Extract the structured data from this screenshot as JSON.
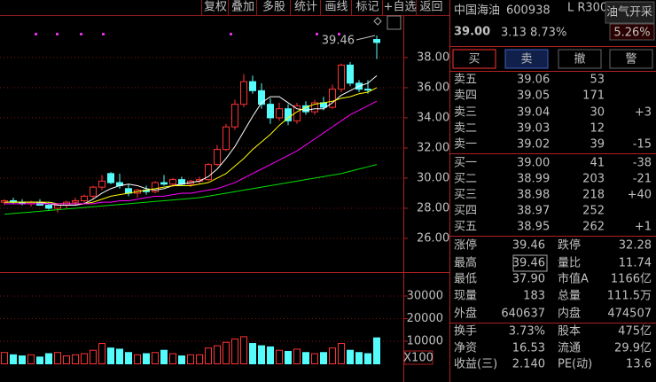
{
  "toolbar": [
    "复权",
    "叠加",
    "多股",
    "统计",
    "画线",
    "标记",
    "+自选",
    "返回"
  ],
  "chart_data": [
    {
      "type": "candlestick",
      "up_color": "#ff3232",
      "down_color": "#54fcfc",
      "max_label": "39.46",
      "open": [
        28.4,
        28.5,
        28.4,
        28.3,
        28.4,
        28.2,
        28.0,
        28.2,
        28.4,
        28.5,
        28.8,
        29.4,
        30.3,
        29.7,
        29.3,
        29.0,
        29.2,
        29.1,
        29.7,
        29.6,
        29.9,
        29.6,
        29.8,
        29.9,
        30.9,
        31.9,
        33.4,
        34.9,
        36.4,
        35.8,
        34.9,
        34.0,
        34.6,
        33.8,
        34.8,
        34.4,
        35.0,
        34.7,
        35.9,
        37.5,
        36.3,
        35.9,
        39.2
      ],
      "high": [
        28.6,
        28.7,
        28.6,
        28.5,
        28.6,
        28.4,
        28.3,
        28.5,
        28.7,
        28.9,
        29.5,
        30.2,
        30.4,
        30.3,
        29.6,
        29.3,
        29.5,
        29.8,
        30.2,
        30.0,
        30.1,
        29.9,
        30.1,
        31.0,
        32.2,
        33.6,
        35.2,
        36.9,
        36.8,
        36.3,
        35.3,
        35.0,
        34.9,
        35.0,
        35.1,
        35.2,
        35.4,
        36.2,
        37.6,
        37.7,
        36.5,
        36.5,
        39.46
      ],
      "low": [
        28.2,
        28.3,
        28.2,
        28.1,
        28.2,
        27.9,
        27.7,
        28.0,
        28.2,
        28.3,
        28.6,
        29.2,
        29.6,
        29.3,
        28.8,
        28.7,
        28.9,
        29.0,
        29.5,
        29.4,
        29.5,
        29.4,
        29.6,
        29.8,
        30.8,
        31.8,
        33.2,
        34.7,
        35.6,
        34.6,
        33.6,
        33.8,
        33.5,
        33.6,
        34.2,
        34.2,
        34.5,
        34.6,
        35.7,
        36.1,
        35.7,
        35.6,
        37.9
      ],
      "close": [
        28.5,
        28.4,
        28.3,
        28.4,
        28.2,
        28.0,
        28.2,
        28.4,
        28.5,
        28.8,
        29.4,
        29.8,
        29.7,
        29.5,
        29.0,
        29.2,
        29.1,
        29.7,
        29.6,
        29.9,
        29.6,
        29.8,
        29.9,
        30.9,
        31.9,
        33.4,
        34.9,
        36.4,
        35.8,
        34.9,
        34.0,
        34.6,
        33.8,
        34.8,
        34.4,
        35.0,
        34.7,
        35.9,
        37.5,
        36.3,
        35.9,
        35.87,
        39.0
      ],
      "series": [
        {
          "name": "MA5",
          "color": "#ffffff",
          "values": [
            28.4,
            28.4,
            28.4,
            28.4,
            28.4,
            28.3,
            28.2,
            28.2,
            28.2,
            28.3,
            28.6,
            29.0,
            29.3,
            29.5,
            29.6,
            29.5,
            29.3,
            29.2,
            29.3,
            29.5,
            29.6,
            29.7,
            29.8,
            30.1,
            30.6,
            31.3,
            32.1,
            33.1,
            34.1,
            35.0,
            35.4,
            35.4,
            35.0,
            34.6,
            34.5,
            34.6,
            34.6,
            35.0,
            35.5,
            35.8,
            36.1,
            36.3,
            36.8
          ]
        },
        {
          "name": "MA10",
          "color": "#ffff00",
          "values": [
            28.4,
            28.4,
            28.4,
            28.4,
            28.4,
            28.4,
            28.3,
            28.3,
            28.3,
            28.3,
            28.4,
            28.6,
            28.8,
            28.9,
            29.0,
            29.1,
            29.2,
            29.3,
            29.4,
            29.5,
            29.5,
            29.5,
            29.6,
            29.7,
            30.0,
            30.3,
            30.8,
            31.3,
            31.9,
            32.4,
            32.9,
            33.5,
            34.0,
            34.4,
            34.7,
            34.9,
            35.0,
            35.1,
            35.3,
            35.4,
            35.6,
            35.7,
            36.0
          ]
        },
        {
          "name": "MA20",
          "color": "#ff00ff",
          "values": [
            28.3,
            28.3,
            28.3,
            28.3,
            28.3,
            28.3,
            28.3,
            28.3,
            28.3,
            28.3,
            28.3,
            28.4,
            28.4,
            28.5,
            28.5,
            28.6,
            28.7,
            28.8,
            28.8,
            28.9,
            29.0,
            29.0,
            29.1,
            29.2,
            29.3,
            29.5,
            29.7,
            30.0,
            30.3,
            30.6,
            30.9,
            31.2,
            31.5,
            31.8,
            32.2,
            32.6,
            33.0,
            33.4,
            33.8,
            34.2,
            34.5,
            34.8,
            35.1
          ]
        },
        {
          "name": "MA60",
          "color": "#00e000",
          "values": [
            27.6,
            27.65,
            27.7,
            27.75,
            27.8,
            27.85,
            27.9,
            27.95,
            28.0,
            28.05,
            28.1,
            28.15,
            28.2,
            28.25,
            28.3,
            28.35,
            28.4,
            28.45,
            28.5,
            28.55,
            28.6,
            28.65,
            28.7,
            28.8,
            28.9,
            29.0,
            29.1,
            29.2,
            29.3,
            29.4,
            29.5,
            29.6,
            29.7,
            29.8,
            29.9,
            30.0,
            30.1,
            30.2,
            30.3,
            30.45,
            30.6,
            30.75,
            30.9
          ]
        }
      ],
      "ylim": [
        23.88,
        40.76
      ],
      "yticks": [
        {
          "value": 26,
          "label": "26.00"
        },
        {
          "value": 28,
          "label": "28.00"
        },
        {
          "value": 30,
          "label": "30.00"
        },
        {
          "value": 32,
          "label": "32.00"
        },
        {
          "value": 34,
          "label": "34.00"
        },
        {
          "value": 36,
          "label": "36.00"
        },
        {
          "value": 38,
          "label": "38.00"
        }
      ]
    },
    {
      "type": "bar",
      "unit_label": "X100",
      "values": [
        5000,
        4000,
        3500,
        4000,
        3000,
        4500,
        5000,
        3500,
        4000,
        4500,
        6000,
        9000,
        7000,
        6500,
        5000,
        4000,
        4500,
        5000,
        6000,
        4500,
        3500,
        4000,
        4000,
        7000,
        8000,
        9500,
        11000,
        12000,
        9000,
        8000,
        7500,
        6000,
        5500,
        6500,
        5000,
        4500,
        5000,
        7000,
        9000,
        6000,
        5000,
        4500,
        11500
      ],
      "ylim": [
        0,
        39400
      ],
      "yticks": [
        10000,
        20000,
        30000
      ]
    }
  ],
  "stock": {
    "name": "中国海油",
    "code": "600938",
    "tag": "L R300",
    "sector": "油气开采",
    "sector_change": "5.26%",
    "price": "39.00",
    "change": "3.13",
    "change_pct": "8.73%"
  },
  "buttons": [
    "买",
    "卖",
    "撤",
    "警"
  ],
  "order_book": [
    {
      "label": "卖五",
      "price": "39.06",
      "volume": "53"
    },
    {
      "label": "卖四",
      "price": "39.05",
      "volume": "171"
    },
    {
      "label": "卖三",
      "price": "39.04",
      "volume": "30",
      "change": "+3"
    },
    {
      "label": "卖二",
      "price": "39.03",
      "volume": "12"
    },
    {
      "label": "卖一",
      "price": "39.02",
      "volume": "39",
      "change": "-15"
    },
    {
      "label": "买一",
      "price": "39.00",
      "volume": "41",
      "change": "-38"
    },
    {
      "label": "买二",
      "price": "38.99",
      "volume": "203",
      "change": "-21"
    },
    {
      "label": "买三",
      "price": "38.98",
      "volume": "218",
      "change": "+40"
    },
    {
      "label": "买四",
      "price": "38.97",
      "volume": "252"
    },
    {
      "label": "买五",
      "price": "38.95",
      "volume": "262",
      "change": "+1"
    }
  ],
  "stats": [
    {
      "label": "涨停",
      "value": "39.46",
      "color": "#ff3232"
    },
    {
      "label": "跌停",
      "value": "32.28",
      "color": "#00e000"
    },
    {
      "label": "最高",
      "value": "39.46",
      "color": "#ff3232",
      "boxed": true
    },
    {
      "label": "量比",
      "value": "11.74",
      "color": "#ff40ff"
    },
    {
      "label": "最低",
      "value": "37.90",
      "color": "#ff3232"
    },
    {
      "label": "市值A",
      "value": "1166亿",
      "color": "#e0e0e0"
    },
    {
      "label": "现量",
      "value": "183",
      "color": "#00e000"
    },
    {
      "label": "总量",
      "value": "111.5万",
      "color": "#e0e0e0"
    },
    {
      "label": "外盘",
      "value": "640637",
      "color": "#ff3232"
    },
    {
      "label": "内盘",
      "value": "474507",
      "color": "#00e000"
    },
    {
      "label": "换手",
      "value": "3.73%",
      "color": "#e0e0e0"
    },
    {
      "label": "股本",
      "value": "475亿",
      "color": "#e0e0e0"
    },
    {
      "label": "净资",
      "value": "16.53",
      "color": "#e0e0e0"
    },
    {
      "label": "流通",
      "value": "29.9亿",
      "color": "#e0e0e0"
    },
    {
      "label": "收益(三)",
      "value": "2.140",
      "color": "#e0e0e0"
    },
    {
      "label": "PE(动)",
      "value": "13.6",
      "color": "#e0e0e0"
    }
  ]
}
